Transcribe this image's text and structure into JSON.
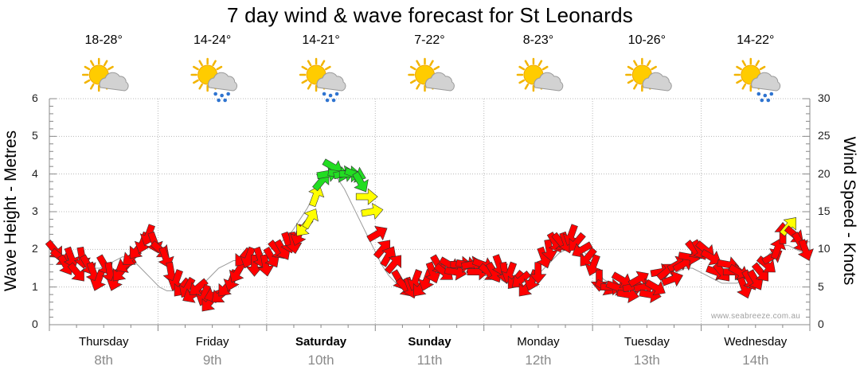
{
  "chart_data": {
    "type": "line",
    "title": "7 day wind & wave forecast for St Leonards",
    "ylabel_left": "Wave Height - Metres",
    "ylabel_right": "Wind Speed - Knots",
    "ylim_left": [
      0,
      6
    ],
    "ylim_right": [
      0,
      30
    ],
    "yticks_left": [
      "0",
      "1",
      "2",
      "3",
      "4",
      "5",
      "6"
    ],
    "yticks_right": [
      "0",
      "5",
      "10",
      "15",
      "20",
      "25",
      "30"
    ],
    "days": [
      {
        "name": "Thursday",
        "date": "8th",
        "bold": false,
        "temp": "18-28°",
        "icon": "sun-cloud-icon"
      },
      {
        "name": "Friday",
        "date": "9th",
        "bold": false,
        "temp": "14-24°",
        "icon": "sun-cloud-rain-icon"
      },
      {
        "name": "Saturday",
        "date": "10th",
        "bold": true,
        "temp": "14-21°",
        "icon": "sun-cloud-rain-icon"
      },
      {
        "name": "Sunday",
        "date": "11th",
        "bold": true,
        "temp": "7-22°",
        "icon": "sun-cloud-icon"
      },
      {
        "name": "Monday",
        "date": "12th",
        "bold": false,
        "temp": "8-23°",
        "icon": "sun-cloud-icon"
      },
      {
        "name": "Tuesday",
        "date": "13th",
        "bold": false,
        "temp": "10-26°",
        "icon": "sun-cloud-icon"
      },
      {
        "name": "Wednesday",
        "date": "14th",
        "bold": false,
        "temp": "14-22°",
        "icon": "sun-cloud-rain-icon"
      }
    ],
    "series": [
      {
        "name": "Wind speed (knots) at hourly steps, with direction (degrees, 0 = pointing up, clockwise)",
        "unit": "knots",
        "values": [
          10,
          9,
          8,
          9,
          7,
          9,
          8,
          7,
          6,
          8,
          7,
          6,
          7,
          8,
          9,
          10,
          11,
          12,
          11,
          10,
          9,
          7,
          6,
          5,
          5,
          4,
          5,
          4,
          3,
          4,
          4,
          5,
          6,
          7,
          9,
          9,
          8,
          9,
          8,
          9,
          10,
          10,
          11,
          11,
          12,
          13,
          14,
          17,
          19,
          20,
          21,
          20,
          20,
          20,
          20,
          19,
          17,
          15,
          12,
          10,
          9,
          8,
          6,
          5,
          5,
          6,
          5,
          6,
          7,
          8,
          7,
          8,
          7,
          8,
          8,
          8,
          7,
          8,
          7,
          7,
          8,
          7,
          7,
          6,
          6,
          5,
          6,
          7,
          9,
          10,
          11,
          11,
          11,
          12,
          11,
          10,
          9,
          8,
          6,
          5,
          5,
          5,
          6,
          4,
          5,
          6,
          5,
          4,
          5,
          7,
          7,
          6,
          8,
          8,
          9,
          10,
          10,
          10,
          9,
          7,
          7,
          8,
          7,
          7,
          5,
          6,
          6,
          7,
          8,
          9,
          10,
          12,
          13,
          12,
          11,
          10
        ],
        "directions": [
          140,
          130,
          150,
          160,
          140,
          170,
          150,
          160,
          200,
          150,
          170,
          200,
          220,
          240,
          230,
          220,
          200,
          200,
          160,
          130,
          160,
          170,
          200,
          220,
          210,
          240,
          230,
          200,
          220,
          250,
          230,
          220,
          200,
          210,
          220,
          200,
          180,
          160,
          170,
          150,
          140,
          150,
          160,
          170,
          200,
          220,
          30,
          20,
          40,
          80,
          120,
          100,
          80,
          90,
          110,
          150,
          90,
          80,
          60,
          40,
          30,
          40,
          150,
          140,
          160,
          200,
          220,
          200,
          160,
          150,
          130,
          120,
          100,
          90,
          100,
          80,
          90,
          110,
          130,
          150,
          160,
          170,
          200,
          220,
          230,
          220,
          200,
          180,
          160,
          170,
          150,
          140,
          160,
          200,
          220,
          240,
          220,
          200,
          180,
          120,
          90,
          110,
          120,
          100,
          80,
          60,
          80,
          100,
          120,
          80,
          50,
          70,
          60,
          60,
          100,
          140,
          150,
          130,
          120,
          110,
          140,
          100,
          90,
          120,
          160,
          150,
          150,
          140,
          130,
          60,
          20,
          0,
          40,
          130,
          150,
          160
        ],
        "color_scale": {
          "low": "#ff0000",
          "mid": "#ffff00",
          "high": "#22dd22"
        }
      },
      {
        "name": "Wave height (metres)",
        "unit": "m",
        "values": [
          1.6,
          1.6,
          1.5,
          1.4,
          1.4,
          1.5,
          1.5,
          1.6,
          1.7,
          1.8,
          1.8,
          1.6,
          1.4,
          1.2,
          1.0,
          0.9,
          0.9,
          0.8,
          0.8,
          0.9,
          1.1,
          1.3,
          1.5,
          1.6,
          1.7,
          1.7,
          1.7,
          1.8,
          1.9,
          2.0,
          2.1,
          2.3,
          2.5,
          2.8,
          3.1,
          3.5,
          3.8,
          4.0,
          3.9,
          3.6,
          3.2,
          2.8,
          2.4,
          2.0,
          1.6,
          1.3,
          1.1,
          1.0,
          1.0,
          1.1,
          1.2,
          1.3,
          1.4,
          1.4,
          1.4,
          1.4,
          1.4,
          1.4,
          1.3,
          1.3,
          1.2,
          1.1,
          1.1,
          1.1,
          1.2,
          1.3,
          1.5,
          1.7,
          1.9,
          2.0,
          2.1,
          2.0,
          1.8,
          1.5,
          1.2,
          1.1,
          1.0,
          1.0,
          1.0,
          0.9,
          0.9,
          1.0,
          1.1,
          1.2,
          1.4,
          1.5,
          1.5,
          1.4,
          1.3,
          1.2,
          1.1,
          1.1,
          1.1,
          1.2,
          1.4,
          1.6,
          1.8,
          2.0,
          2.1,
          2.1,
          2.0,
          1.9
        ]
      }
    ],
    "watermark": "www.seabreeze.com.au"
  }
}
